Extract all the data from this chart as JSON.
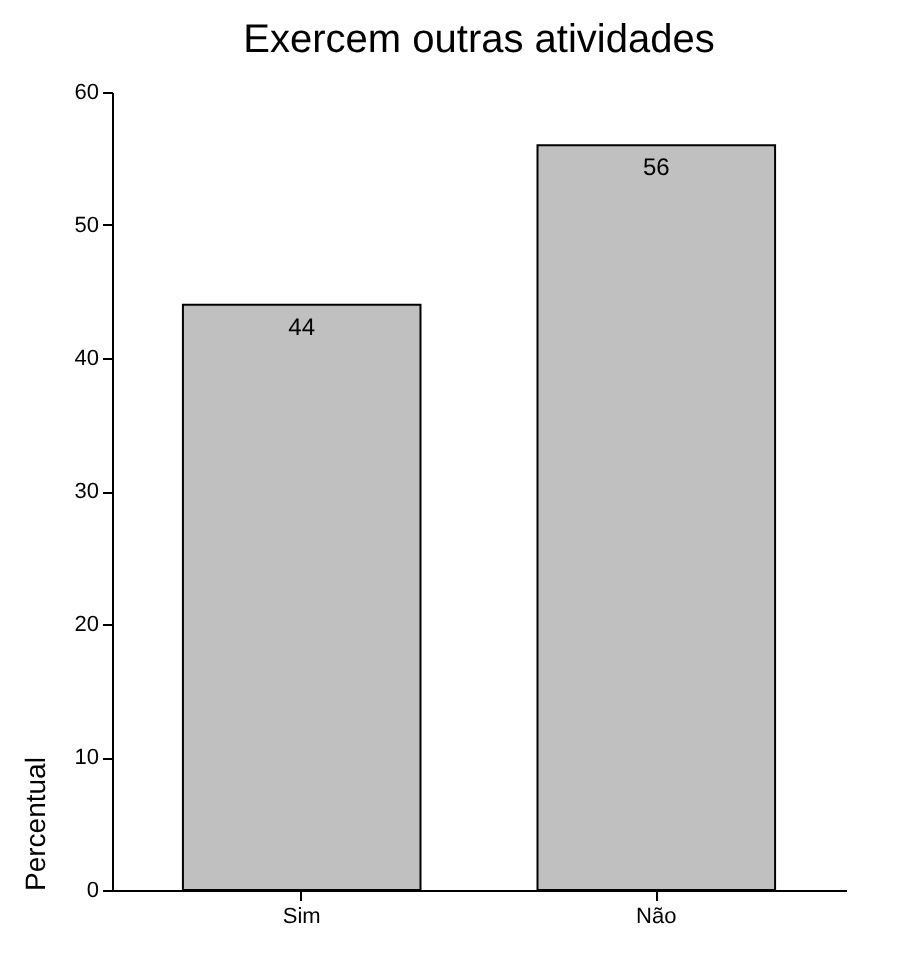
{
  "chart_data": {
    "type": "bar",
    "title": "Exercem outras atividades",
    "ylabel": "Percentual",
    "categories": [
      "Sim",
      "Não"
    ],
    "values": [
      44,
      56
    ],
    "color": "#c0c0c0",
    "ylim": [
      0,
      60
    ],
    "yticks": [
      0,
      10,
      20,
      30,
      40,
      50,
      60
    ],
    "data_labels": true,
    "grid": false
  }
}
